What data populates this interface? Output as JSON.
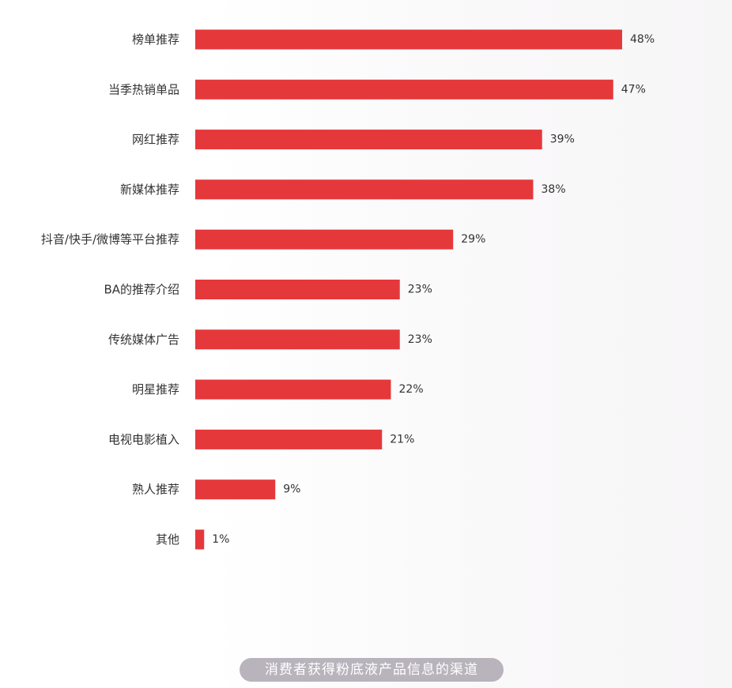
{
  "chart_data": {
    "type": "bar",
    "orientation": "horizontal",
    "title": "",
    "xlabel": "",
    "ylabel": "",
    "xlim": [
      0,
      50
    ],
    "grid": false,
    "legend": "none",
    "bar_color": "#e5383b",
    "categories": [
      "榜单推荐",
      "当季热销单品",
      "网红推荐",
      "新媒体推荐",
      "抖音/快手/微博等平台推荐",
      "BA的推荐介绍",
      "传统媒体广告",
      "明星推荐",
      "电视电影植入",
      "熟人推荐",
      "其他"
    ],
    "values": [
      48,
      47,
      39,
      38,
      29,
      23,
      23,
      22,
      21,
      9,
      1
    ],
    "value_labels": [
      "48%",
      "47%",
      "39%",
      "38%",
      "29%",
      "23%",
      "23%",
      "22%",
      "21%",
      "9%",
      "1%"
    ]
  },
  "caption": "消费者获得粉底液产品信息的渠道"
}
